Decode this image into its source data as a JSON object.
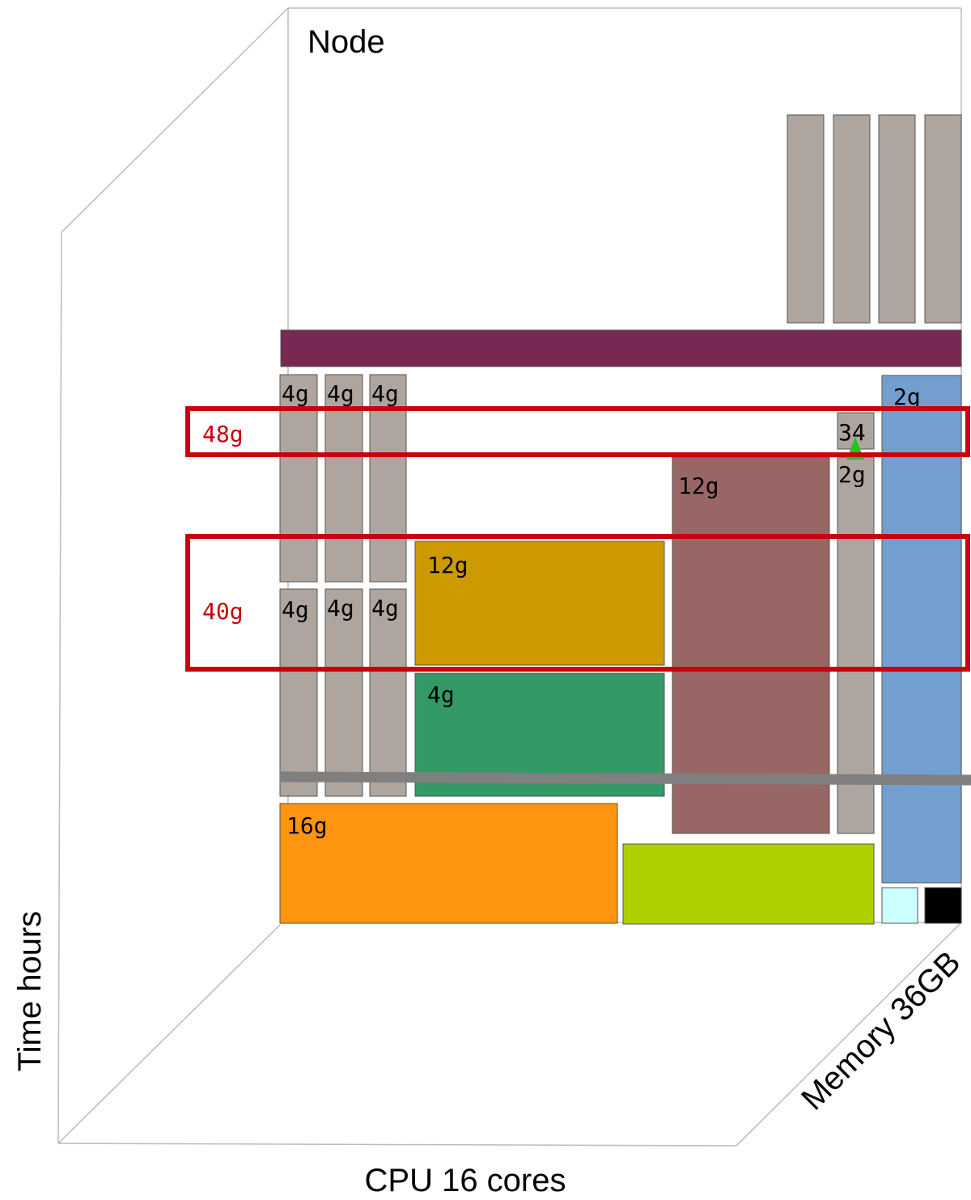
{
  "title": "Node",
  "axes": {
    "time": "Time hours",
    "cpu": "CPU 16 cores",
    "memory": "Memory 36GB"
  },
  "blocks": [
    {
      "label": "4g"
    },
    {
      "label": "4g"
    },
    {
      "label": "4g"
    },
    {
      "label": "4g"
    },
    {
      "label": "4g"
    },
    {
      "label": "4g"
    },
    {
      "label": "2g"
    },
    {
      "label": "34"
    },
    {
      "label": "2g"
    },
    {
      "label": "12g"
    },
    {
      "label": "12g"
    },
    {
      "label": "4g"
    },
    {
      "label": "16g"
    }
  ],
  "highlights": [
    {
      "label": "48g"
    },
    {
      "label": "40g"
    }
  ]
}
